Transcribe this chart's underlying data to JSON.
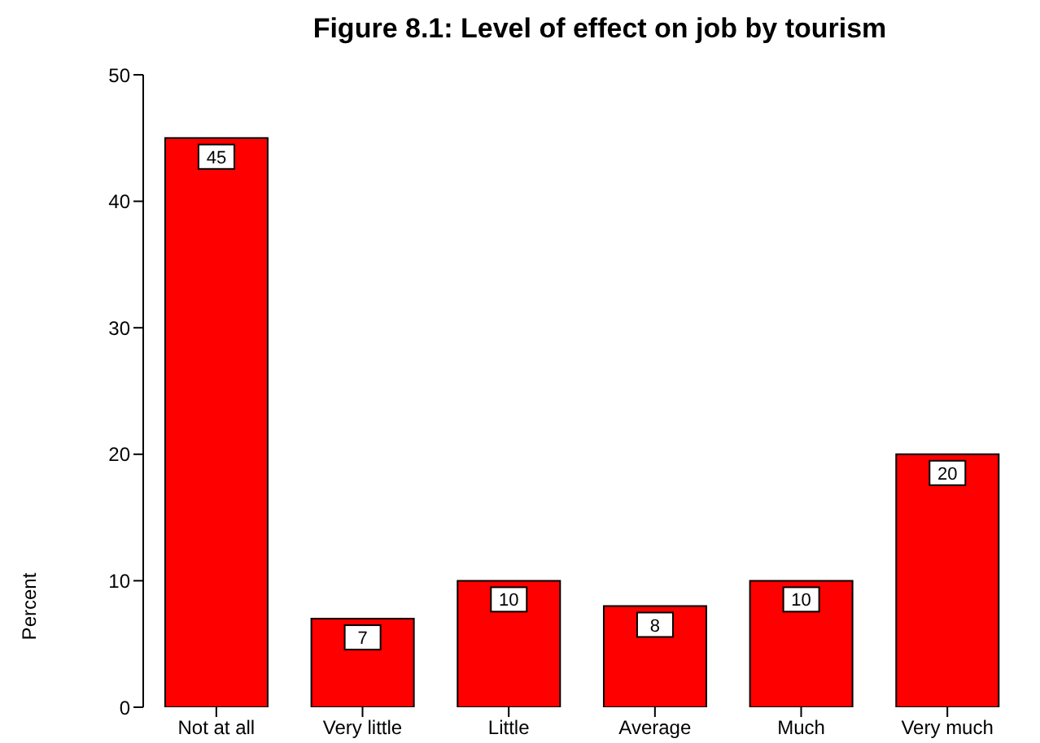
{
  "chart_data": {
    "type": "bar",
    "title": "Figure 8.1: Level of effect on job by tourism",
    "ylabel": "Percent",
    "categories": [
      "Not at all",
      "Very little",
      "Little",
      "Average",
      "Much",
      "Very much"
    ],
    "values": [
      45,
      7,
      10,
      8,
      10,
      20
    ],
    "color": "#ff0000",
    "ylim": [
      0,
      50
    ],
    "yticks": [
      0,
      10,
      20,
      30,
      40,
      50
    ],
    "grid": false,
    "data_labels": true
  }
}
